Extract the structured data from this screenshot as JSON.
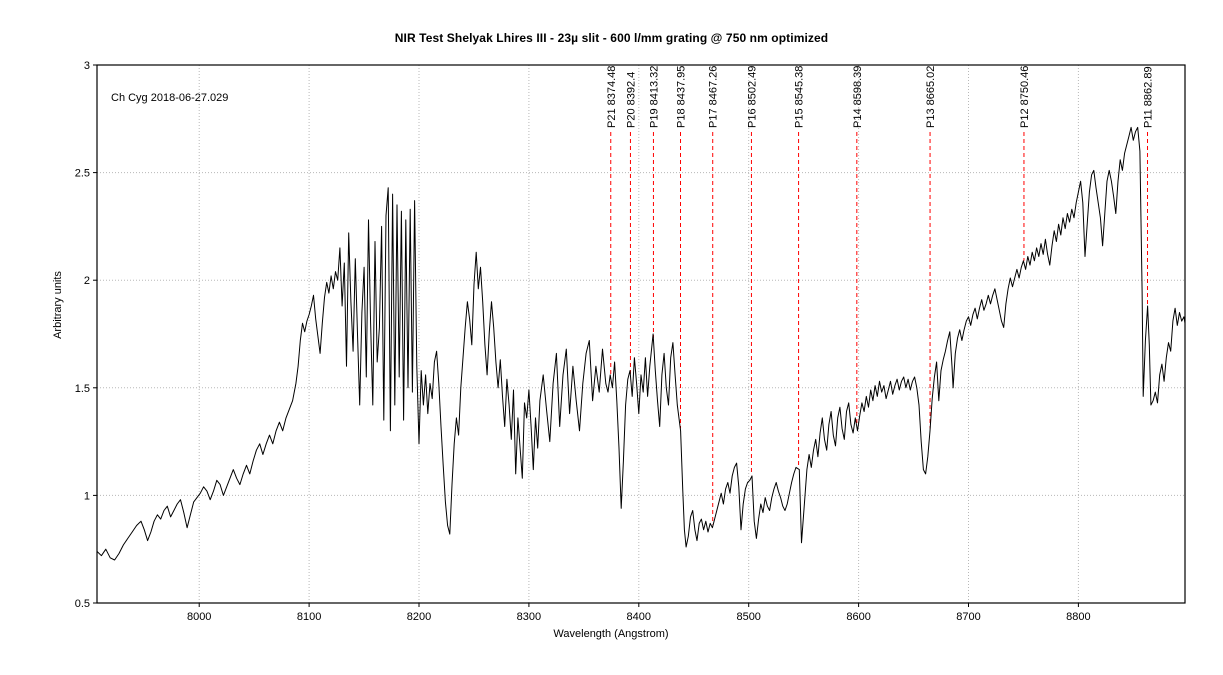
{
  "title": "NIR Test Shelyak Lhires III - 23µ slit - 600 l/mm grating @ 750 nm optimized",
  "annotation": "Ch Cyg  2018-06-27.029",
  "chart_data": {
    "type": "line",
    "title": "NIR Test Shelyak Lhires III - 23µ slit - 600 l/mm grating @ 750 nm optimized",
    "xlabel": "Wavelength (Angstrom)",
    "ylabel": "Arbitrary units",
    "xlim": [
      7907,
      8897
    ],
    "ylim": [
      0.5,
      3
    ],
    "x_ticks": [
      8000,
      8100,
      8200,
      8300,
      8400,
      8500,
      8600,
      8700,
      8800
    ],
    "y_ticks": [
      0.5,
      1,
      1.5,
      2,
      2.5,
      3
    ],
    "grid": true,
    "legend_position": "none",
    "line_color": "#000000",
    "grid_color": "#b8b8b8",
    "marker_color": "#ff0000",
    "line_markers": [
      {
        "label": "P21 8374.48",
        "wavelength": 8374.48
      },
      {
        "label": "P20 8392.4",
        "wavelength": 8392.4
      },
      {
        "label": "P19 8413.32",
        "wavelength": 8413.32
      },
      {
        "label": "P18 8437.95",
        "wavelength": 8437.95
      },
      {
        "label": "P17 8467.26",
        "wavelength": 8467.26
      },
      {
        "label": "P16 8502.49",
        "wavelength": 8502.49
      },
      {
        "label": "P15 8545.38",
        "wavelength": 8545.38
      },
      {
        "label": "P14 8598.39",
        "wavelength": 8598.39
      },
      {
        "label": "P13 8665.02",
        "wavelength": 8665.02
      },
      {
        "label": "P12 8750.46",
        "wavelength": 8750.46
      },
      {
        "label": "P11 8862.89",
        "wavelength": 8862.89
      }
    ],
    "series": [
      {
        "name": "Ch Cyg 2018-06-27.029",
        "x": [
          7907,
          7911,
          7915,
          7919,
          7923,
          7927,
          7931,
          7935,
          7939,
          7943,
          7947,
          7950,
          7953,
          7956,
          7959,
          7962,
          7965,
          7968,
          7971,
          7974,
          7977,
          7980,
          7983,
          7986,
          7989,
          7992,
          7995,
          7998,
          8001,
          8004,
          8007,
          8010,
          8013,
          8016,
          8019,
          8022,
          8025,
          8028,
          8031,
          8034,
          8037,
          8040,
          8043,
          8046,
          8049,
          8052,
          8055,
          8058,
          8061,
          8064,
          8067,
          8070,
          8073,
          8076,
          8079,
          8082,
          8085,
          8088,
          8090,
          8092,
          8094,
          8096,
          8098,
          8100,
          8102,
          8104,
          8106,
          8108,
          8110,
          8112,
          8114,
          8116,
          8118,
          8120,
          8122,
          8124,
          8126,
          8128,
          8130,
          8132,
          8134,
          8136,
          8138,
          8140,
          8142,
          8144,
          8146,
          8148,
          8150,
          8152,
          8154,
          8156,
          8158,
          8160,
          8162,
          8164,
          8166,
          8168,
          8170,
          8172,
          8174,
          8176,
          8178,
          8180,
          8182,
          8184,
          8186,
          8188,
          8190,
          8192,
          8194,
          8196,
          8198,
          8200,
          8202,
          8204,
          8206,
          8208,
          8210,
          8212,
          8214,
          8216,
          8218,
          8220,
          8222,
          8224,
          8226,
          8228,
          8230,
          8232,
          8234,
          8236,
          8238,
          8240,
          8242,
          8244,
          8246,
          8248,
          8250,
          8252,
          8254,
          8256,
          8258,
          8260,
          8262,
          8264,
          8266,
          8268,
          8270,
          8272,
          8274,
          8276,
          8278,
          8280,
          8282,
          8284,
          8286,
          8288,
          8290,
          8292,
          8294,
          8296,
          8298,
          8300,
          8302,
          8304,
          8306,
          8308,
          8310,
          8313,
          8316,
          8319,
          8322,
          8325,
          8328,
          8331,
          8334,
          8337,
          8340,
          8343,
          8346,
          8349,
          8352,
          8355,
          8358,
          8361,
          8364,
          8367,
          8370,
          8372,
          8374,
          8376,
          8378,
          8380,
          8382,
          8384,
          8386,
          8388,
          8390,
          8392,
          8394,
          8396,
          8398,
          8400,
          8402,
          8404,
          8406,
          8408,
          8410,
          8413,
          8415,
          8417,
          8419,
          8421,
          8423,
          8425,
          8427,
          8429,
          8431,
          8433,
          8435,
          8438,
          8440,
          8441.5,
          8443,
          8445,
          8447,
          8449,
          8451,
          8453,
          8455,
          8457,
          8459,
          8461,
          8463,
          8465,
          8467,
          8469,
          8471,
          8473,
          8475,
          8477,
          8479,
          8481,
          8483,
          8485,
          8487,
          8489,
          8491,
          8493,
          8495,
          8497,
          8499,
          8501,
          8503,
          8505,
          8507,
          8509,
          8511,
          8513,
          8515,
          8517,
          8519,
          8521,
          8523,
          8525,
          8527,
          8529,
          8531,
          8533,
          8535,
          8537,
          8539,
          8541,
          8543,
          8546,
          8548,
          8551,
          8553,
          8555,
          8557,
          8559,
          8561,
          8563,
          8565,
          8567,
          8569,
          8571,
          8573,
          8575,
          8577,
          8579,
          8581,
          8583,
          8585,
          8587,
          8589,
          8591,
          8593,
          8595,
          8597,
          8599,
          8601,
          8603,
          8605,
          8607,
          8609,
          8611,
          8613,
          8615,
          8617,
          8619,
          8621,
          8623,
          8625,
          8627,
          8629,
          8631,
          8633,
          8635,
          8637,
          8639,
          8641,
          8643,
          8645,
          8647,
          8649,
          8651,
          8653,
          8655,
          8657,
          8659,
          8661,
          8663,
          8665,
          8667,
          8669,
          8671,
          8673,
          8675,
          8677,
          8679,
          8681,
          8683,
          8685,
          8686,
          8688,
          8690,
          8692,
          8694,
          8696,
          8698,
          8700,
          8702,
          8704,
          8706,
          8708,
          8710,
          8712,
          8714,
          8716,
          8718,
          8720,
          8722,
          8724,
          8726,
          8728,
          8730,
          8732,
          8734,
          8736,
          8738,
          8740,
          8742,
          8744,
          8746,
          8748,
          8750,
          8752,
          8754,
          8756,
          8758,
          8760,
          8762,
          8764,
          8766,
          8768,
          8770,
          8772,
          8774,
          8776,
          8778,
          8780,
          8782,
          8784,
          8786,
          8788,
          8790,
          8792,
          8794,
          8796,
          8798,
          8800,
          8802,
          8804,
          8806,
          8808,
          8810,
          8812,
          8814,
          8816,
          8818,
          8820,
          8822,
          8824,
          8826,
          8828,
          8830,
          8832,
          8834,
          8836,
          8838,
          8840,
          8842,
          8844,
          8846,
          8848,
          8850,
          8852,
          8854,
          8856,
          8858,
          8859,
          8861,
          8863,
          8864.5,
          8866,
          8868,
          8870,
          8872,
          8874,
          8876,
          8878,
          8880,
          8882,
          8884,
          8886,
          8888,
          8890,
          8892,
          8894,
          8896,
          8897
        ],
        "y": [
          0.74,
          0.72,
          0.75,
          0.71,
          0.7,
          0.73,
          0.77,
          0.8,
          0.83,
          0.86,
          0.88,
          0.84,
          0.79,
          0.83,
          0.88,
          0.91,
          0.89,
          0.93,
          0.95,
          0.9,
          0.93,
          0.96,
          0.98,
          0.92,
          0.85,
          0.91,
          0.97,
          0.99,
          1.01,
          1.04,
          1.02,
          0.98,
          1.02,
          1.07,
          1.05,
          1.0,
          1.04,
          1.08,
          1.12,
          1.08,
          1.05,
          1.1,
          1.14,
          1.1,
          1.16,
          1.21,
          1.24,
          1.19,
          1.24,
          1.28,
          1.24,
          1.3,
          1.34,
          1.3,
          1.36,
          1.4,
          1.44,
          1.52,
          1.6,
          1.72,
          1.8,
          1.76,
          1.81,
          1.84,
          1.88,
          1.93,
          1.82,
          1.74,
          1.66,
          1.8,
          1.92,
          1.99,
          1.94,
          2.02,
          1.96,
          2.04,
          2.0,
          2.15,
          1.88,
          2.08,
          1.6,
          2.22,
          1.9,
          1.67,
          2.1,
          1.75,
          1.42,
          1.85,
          2.06,
          1.55,
          2.28,
          1.8,
          1.42,
          2.18,
          1.62,
          1.78,
          2.25,
          1.35,
          2.3,
          2.43,
          1.3,
          2.4,
          1.42,
          2.35,
          1.55,
          2.32,
          1.35,
          2.28,
          1.5,
          2.33,
          1.48,
          2.37,
          1.6,
          1.24,
          1.58,
          1.42,
          1.56,
          1.38,
          1.52,
          1.45,
          1.62,
          1.67,
          1.52,
          1.32,
          1.14,
          0.97,
          0.86,
          0.82,
          1.05,
          1.24,
          1.36,
          1.28,
          1.5,
          1.64,
          1.78,
          1.9,
          1.82,
          1.7,
          1.98,
          2.13,
          1.96,
          2.06,
          1.9,
          1.7,
          1.56,
          1.76,
          1.9,
          1.78,
          1.62,
          1.5,
          1.63,
          1.46,
          1.32,
          1.54,
          1.42,
          1.26,
          1.49,
          1.1,
          1.36,
          1.22,
          1.08,
          1.43,
          1.36,
          1.49,
          1.32,
          1.12,
          1.36,
          1.22,
          1.44,
          1.56,
          1.4,
          1.25,
          1.52,
          1.66,
          1.32,
          1.56,
          1.68,
          1.38,
          1.6,
          1.44,
          1.3,
          1.52,
          1.66,
          1.72,
          1.44,
          1.6,
          1.48,
          1.68,
          1.52,
          1.48,
          1.56,
          1.5,
          1.62,
          1.44,
          1.22,
          0.94,
          1.16,
          1.42,
          1.54,
          1.58,
          1.46,
          1.64,
          1.52,
          1.38,
          1.56,
          1.48,
          1.64,
          1.46,
          1.6,
          1.75,
          1.58,
          1.44,
          1.32,
          1.56,
          1.66,
          1.5,
          1.42,
          1.64,
          1.71,
          1.56,
          1.42,
          1.3,
          1.02,
          0.84,
          0.76,
          0.81,
          0.9,
          0.93,
          0.84,
          0.79,
          0.87,
          0.89,
          0.84,
          0.88,
          0.83,
          0.87,
          0.85,
          0.89,
          0.93,
          0.97,
          1.01,
          0.96,
          1.03,
          1.06,
          1.01,
          1.09,
          1.13,
          1.15,
          1.04,
          0.84,
          0.96,
          1.03,
          1.06,
          1.07,
          1.09,
          0.88,
          0.8,
          0.89,
          0.96,
          0.92,
          0.99,
          0.95,
          0.93,
          0.99,
          1.03,
          1.06,
          1.02,
          0.99,
          0.95,
          0.93,
          0.96,
          1.01,
          1.06,
          1.1,
          1.13,
          1.12,
          0.78,
          0.98,
          1.12,
          1.19,
          1.13,
          1.21,
          1.26,
          1.18,
          1.29,
          1.36,
          1.26,
          1.21,
          1.33,
          1.39,
          1.28,
          1.23,
          1.36,
          1.41,
          1.31,
          1.26,
          1.39,
          1.43,
          1.33,
          1.29,
          1.36,
          1.3,
          1.37,
          1.43,
          1.39,
          1.46,
          1.41,
          1.49,
          1.44,
          1.51,
          1.46,
          1.53,
          1.48,
          1.51,
          1.45,
          1.49,
          1.53,
          1.47,
          1.51,
          1.54,
          1.49,
          1.53,
          1.55,
          1.5,
          1.54,
          1.49,
          1.53,
          1.55,
          1.5,
          1.42,
          1.25,
          1.12,
          1.1,
          1.18,
          1.3,
          1.45,
          1.55,
          1.62,
          1.44,
          1.58,
          1.63,
          1.67,
          1.72,
          1.76,
          1.6,
          1.5,
          1.66,
          1.73,
          1.77,
          1.72,
          1.77,
          1.81,
          1.83,
          1.79,
          1.84,
          1.87,
          1.82,
          1.87,
          1.91,
          1.86,
          1.89,
          1.93,
          1.89,
          1.93,
          1.96,
          1.91,
          1.86,
          1.81,
          1.78,
          1.89,
          1.96,
          2.01,
          1.97,
          2.01,
          2.05,
          2.01,
          2.06,
          2.09,
          2.05,
          2.11,
          2.07,
          2.13,
          2.09,
          2.15,
          2.11,
          2.17,
          2.12,
          2.19,
          2.12,
          2.07,
          2.16,
          2.23,
          2.18,
          2.26,
          2.21,
          2.29,
          2.24,
          2.31,
          2.27,
          2.33,
          2.29,
          2.36,
          2.41,
          2.46,
          2.36,
          2.11,
          2.26,
          2.41,
          2.49,
          2.51,
          2.43,
          2.36,
          2.29,
          2.16,
          2.31,
          2.46,
          2.51,
          2.46,
          2.39,
          2.31,
          2.46,
          2.56,
          2.51,
          2.59,
          2.63,
          2.67,
          2.71,
          2.65,
          2.69,
          2.71,
          2.6,
          1.95,
          1.46,
          1.72,
          1.88,
          1.7,
          1.42,
          1.44,
          1.48,
          1.43,
          1.56,
          1.61,
          1.53,
          1.64,
          1.71,
          1.67,
          1.81,
          1.87,
          1.79,
          1.85,
          1.81,
          1.83,
          1.8
        ]
      }
    ]
  }
}
